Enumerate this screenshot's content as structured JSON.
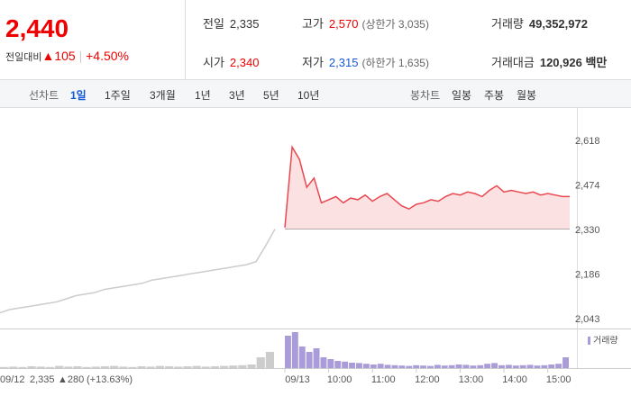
{
  "header": {
    "price": "2,440",
    "change_label": "전일대비",
    "change": "▲105",
    "change_rate": "+4.50%",
    "stats": [
      [
        {
          "label": "전일",
          "value": "2,335"
        },
        {
          "label": "고가",
          "value": "2,570",
          "extra": "(상한가 3,035)"
        },
        {
          "label": "거래량",
          "value": "49,352,972"
        }
      ],
      [
        {
          "label": "시가",
          "value": "2,340"
        },
        {
          "label": "저가",
          "value": "2,315",
          "extra": "(하한가 1,635)"
        },
        {
          "label": "거래대금",
          "value": "120,926 백만"
        }
      ]
    ]
  },
  "tabs": {
    "line_label": "선차트",
    "line": [
      "1일",
      "1주일",
      "3개월",
      "1년",
      "3년",
      "5년",
      "10년"
    ],
    "candle_label": "봉차트",
    "candle": [
      "일봉",
      "주봉",
      "월봉"
    ]
  },
  "chart_data": {
    "type": "line",
    "baseline": 2335,
    "ylim": [
      2014,
      2697
    ],
    "yticks": [
      {
        "value": 2043,
        "label": "2,043"
      },
      {
        "value": 2186,
        "label": "2,186"
      },
      {
        "value": 2330,
        "label": "2,330"
      },
      {
        "value": 2474,
        "label": "2,474"
      },
      {
        "value": 2618,
        "label": "2,618"
      }
    ],
    "xlim": [
      0,
      390
    ],
    "xticks": [
      {
        "value": 0,
        "label": "09/13"
      },
      {
        "value": 60,
        "label": "10:00"
      },
      {
        "value": 120,
        "label": "11:00"
      },
      {
        "value": 180,
        "label": "12:00"
      },
      {
        "value": 240,
        "label": "13:00"
      },
      {
        "value": 300,
        "label": "14:00"
      },
      {
        "value": 360,
        "label": "15:00"
      }
    ],
    "prev_label": "09/12",
    "prev_close": "2,335",
    "prev_change": "▲280",
    "prev_rate": "(+13.63%)",
    "series": [
      {
        "color": "#cccccc",
        "values": [
          2065,
          2075,
          2080,
          2085,
          2090,
          2095,
          2100,
          2110,
          2120,
          2125,
          2130,
          2140,
          2145,
          2150,
          2155,
          2160,
          2170,
          2175,
          2180,
          2185,
          2190,
          2195,
          2200,
          2205,
          2210,
          2215,
          2220,
          2230,
          2280,
          2335
        ]
      },
      {
        "color": "#e8484f",
        "values": [
          2340,
          2600,
          2560,
          2470,
          2500,
          2420,
          2430,
          2440,
          2420,
          2435,
          2430,
          2445,
          2425,
          2440,
          2450,
          2430,
          2410,
          2400,
          2415,
          2420,
          2430,
          2425,
          2440,
          2450,
          2445,
          2455,
          2450,
          2440,
          2460,
          2475,
          2455,
          2460,
          2455,
          2450,
          2455,
          2445,
          2450,
          2445,
          2440,
          2440
        ]
      }
    ],
    "volume": {
      "name": "거래량",
      "color": "#a99cd9",
      "vlim": [
        0,
        100
      ],
      "prev": [
        3,
        4,
        3,
        5,
        4,
        3,
        6,
        4,
        5,
        3,
        4,
        5,
        6,
        4,
        3,
        5,
        4,
        6,
        5,
        4,
        5,
        6,
        4,
        5,
        6,
        7,
        8,
        10,
        30,
        45
      ],
      "values": [
        90,
        100,
        60,
        45,
        55,
        30,
        25,
        20,
        18,
        15,
        14,
        12,
        10,
        12,
        9,
        8,
        7,
        6,
        8,
        7,
        6,
        9,
        7,
        8,
        10,
        9,
        7,
        8,
        12,
        14,
        8,
        9,
        7,
        8,
        9,
        7,
        8,
        10,
        12,
        30
      ]
    }
  }
}
